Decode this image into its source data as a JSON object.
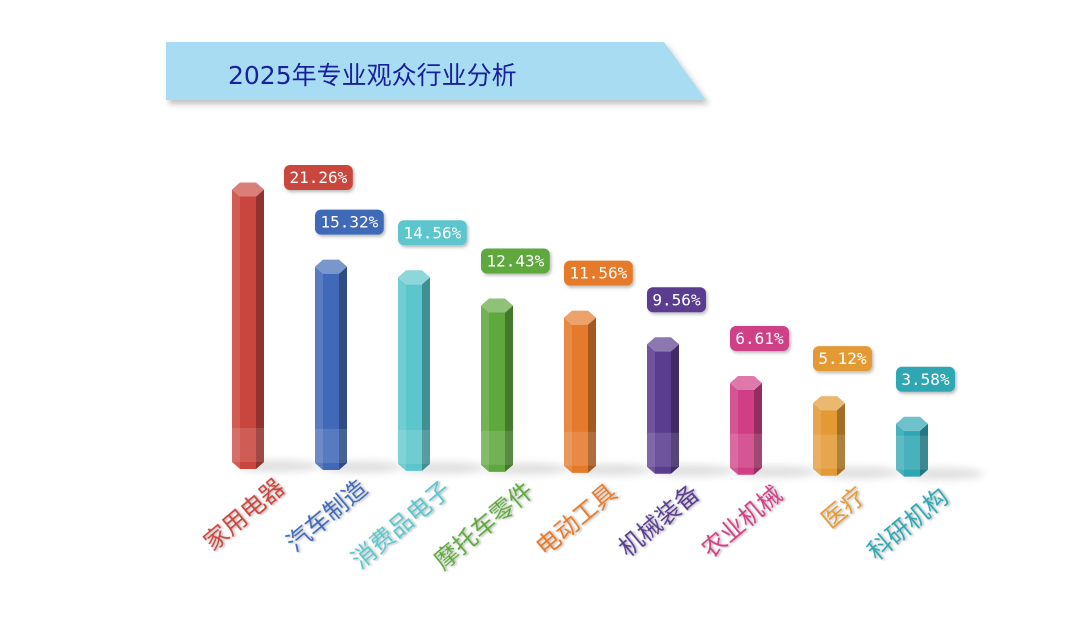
{
  "chart_data": {
    "type": "bar",
    "title": "2025年专业观众行业分析",
    "categories": [
      "家用电器",
      "汽车制造",
      "消费品电子",
      "摩托车零件",
      "电动工具",
      "机械装备",
      "农业机械",
      "医疗",
      "科研机构"
    ],
    "values": [
      21.26,
      15.32,
      14.56,
      12.43,
      11.56,
      9.56,
      6.61,
      5.12,
      3.58
    ],
    "data_labels": [
      "21.26%",
      "15.32%",
      "14.56%",
      "12.43%",
      "11.56%",
      "9.56%",
      "6.61%",
      "5.12%",
      "3.58%"
    ],
    "colors": [
      "#c9463e",
      "#4169b8",
      "#5cc6cc",
      "#5fa83e",
      "#e57a2c",
      "#5a3d8f",
      "#d03f86",
      "#e39a35",
      "#2fa7b3"
    ],
    "xlabel": "",
    "ylabel": "",
    "ylim": [
      0,
      22
    ],
    "grid": false,
    "legend": "none"
  },
  "banner": {
    "fill": "#a8dcf3"
  }
}
